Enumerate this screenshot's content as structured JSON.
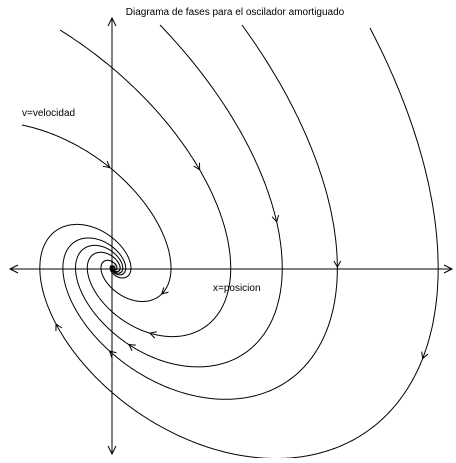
{
  "title": "Diagrama de fases para el oscilador amortiguado",
  "y_axis_label": "v=velocidad",
  "x_axis_label": "x=posicion"
}
